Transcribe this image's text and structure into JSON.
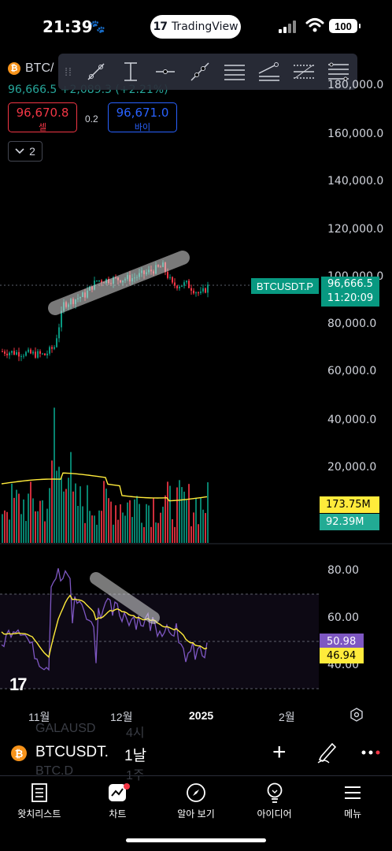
{
  "status_bar": {
    "time": "21:39",
    "tradingview_label": "TradingView",
    "battery": "100"
  },
  "chart": {
    "symbol_short": "BTC/",
    "price_change": "96,666.5  +2,089.3 (+2.21%)",
    "sell_price": "96,670.8",
    "sell_label": "셀",
    "spread": "0.2",
    "buy_price": "96,671.0",
    "buy_label": "바이",
    "indicator_count": "2",
    "price_axis": [
      "180,000.0",
      "160,000.0",
      "140,000.0",
      "120,000.0",
      "100,000.0",
      "80,000.0",
      "60,000.0",
      "40,000.0",
      "20,000.0"
    ],
    "symbol_tag": "BTCUSDT.P",
    "last_price": "96,666.5",
    "countdown": "11:20:09",
    "volume_ma": "173.75M",
    "volume": "92.39M",
    "rsi_axis": [
      "80.00",
      "60.00",
      "40.00"
    ],
    "rsi_value": "50.98",
    "rsi_ma": "46.94",
    "time_axis": [
      "11월",
      "12월",
      "2025",
      "2월"
    ],
    "colors": {
      "up": "#089981",
      "down": "#f23645",
      "rsi": "#7e57c2",
      "ma": "#ffeb3b"
    }
  },
  "symbol_bar": {
    "symbol": "BTCUSDT.",
    "interval": "1날",
    "ghost_top_symbol": "GALAUSD",
    "ghost_top_interval": "4시",
    "ghost_bottom_symbol": "BTC.D",
    "ghost_bottom_interval": "1주"
  },
  "bottom_nav": {
    "items": [
      {
        "label": "왓치리스트",
        "icon": "watchlist-icon"
      },
      {
        "label": "차트",
        "icon": "chart-icon"
      },
      {
        "label": "알아 보기",
        "icon": "compass-icon"
      },
      {
        "label": "아이디어",
        "icon": "lightbulb-icon"
      },
      {
        "label": "메뉴",
        "icon": "menu-icon"
      }
    ]
  }
}
